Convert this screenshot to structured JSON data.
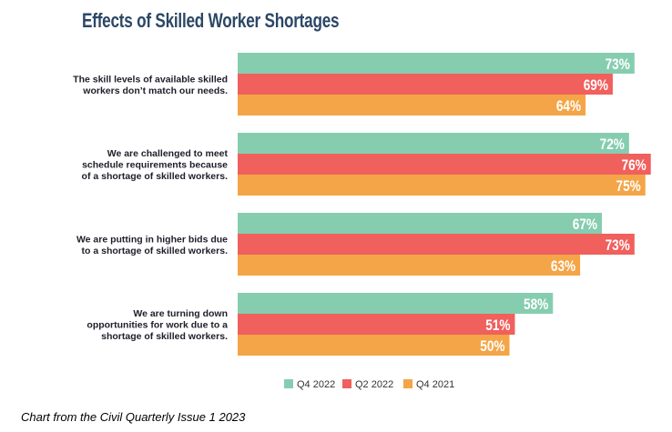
{
  "chart_data": {
    "type": "bar",
    "orientation": "horizontal",
    "title": "Effects of Skilled Worker Shortages",
    "categories": [
      [
        "The skill levels of available skilled",
        "workers don’t match our needs."
      ],
      [
        "We are challenged to meet",
        "schedule requirements because",
        "of a shortage of skilled workers."
      ],
      [
        "We are putting in higher bids due",
        "to a shortage of skilled workers."
      ],
      [
        "We are turning down",
        "opportunities for work due to a",
        "shortage of skilled workers."
      ]
    ],
    "series": [
      {
        "name": "Q4 2022",
        "color": "#86cdb0",
        "values": [
          73,
          72,
          67,
          58
        ]
      },
      {
        "name": "Q2 2022",
        "color": "#f0605d",
        "values": [
          69,
          76,
          73,
          51
        ]
      },
      {
        "name": "Q4 2021",
        "color": "#f4a547",
        "values": [
          64,
          75,
          63,
          50
        ]
      }
    ],
    "value_suffix": "%",
    "xlim": [
      0,
      80
    ],
    "grid": false,
    "legend": "bottom"
  },
  "caption": "Chart from the Civil Quarterly Issue 1 2023"
}
